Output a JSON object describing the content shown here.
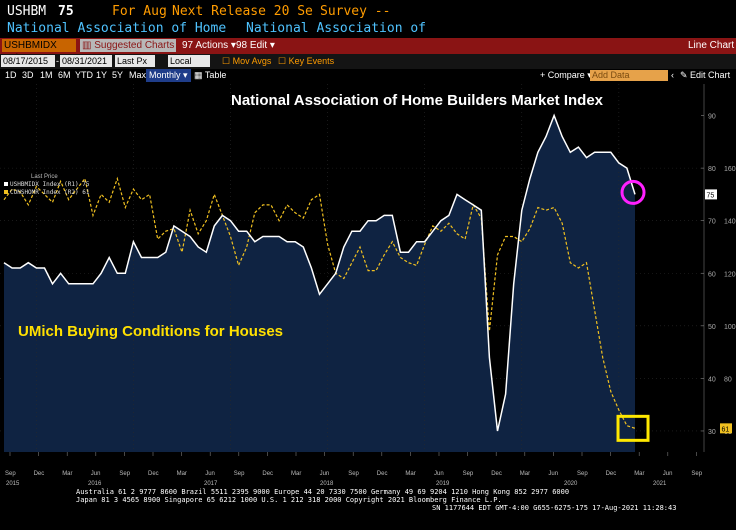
{
  "header": {
    "ticker": "USHBM",
    "value": "75",
    "for_aug": "For Aug",
    "next_release": "Next Release 20 Se",
    "survey": "Survey --",
    "line2_a": "National Association of Home",
    "line2_b": "National Association of"
  },
  "toolbar": {
    "ticker_field": "USHBMIDX Index",
    "suggested": "Suggested Charts",
    "actions": "Actions",
    "edit": "Edit",
    "line_chart": "Line Chart"
  },
  "range_bar": {
    "start_date": "08/17/2015",
    "end_date": "08/31/2021",
    "last_px": "Last Px",
    "local_ccy": "Local CCY",
    "mov_avgs": "Mov Avgs",
    "key_events": "Key Events"
  },
  "period_bar": {
    "periods": [
      "1D",
      "3D",
      "1M",
      "6M",
      "YTD",
      "1Y",
      "5Y",
      "Max"
    ],
    "frequency": "Monthly",
    "table": "Table",
    "compare": "Compare",
    "add_data": "Add Data",
    "edit_chart": "Edit Chart"
  },
  "chart_data": {
    "type": "line",
    "title": "National Association of Home Builders Market Index",
    "annotation": "UMich Buying Conditions for Houses",
    "legend_title": "Last Price",
    "legend": [
      {
        "label": "USHBMIDX Index (R1) 75",
        "color": "#ffffff",
        "style": "solid"
      },
      {
        "label": "CONSHOMR Index (R2) 61",
        "color": "#f0c020",
        "style": "dashed"
      }
    ],
    "x_labels": [
      "Sep",
      "Dec",
      "Mar",
      "Jun",
      "Sep",
      "Dec",
      "Mar",
      "Jun",
      "Sep",
      "Dec",
      "Mar",
      "Jun",
      "Sep",
      "Dec",
      "Mar",
      "Jun",
      "Sep",
      "Dec",
      "Mar",
      "Jun",
      "Sep",
      "Dec",
      "Mar",
      "Jun",
      "Sep"
    ],
    "year_labels": [
      "2015",
      "2016",
      "2017",
      "2018",
      "2019",
      "2020",
      "2021"
    ],
    "y_ticks": [
      30,
      40,
      50,
      60,
      70,
      80,
      90
    ],
    "y2_ticks": [
      60,
      80,
      100,
      120,
      140,
      160
    ],
    "y_range": [
      26,
      96
    ],
    "y2_range": [
      52,
      192
    ],
    "series": [
      {
        "name": "USHBMIDX Index",
        "axis": "left",
        "last_label": "75",
        "values": [
          62,
          61,
          61,
          62,
          61,
          61,
          58,
          60,
          58,
          58,
          58,
          58,
          60,
          63,
          60,
          60,
          66,
          63,
          63,
          63,
          64,
          69,
          68,
          67,
          65,
          64,
          69,
          71,
          70,
          68,
          68,
          66,
          67,
          67,
          67,
          66,
          66,
          65,
          61,
          56,
          58,
          60,
          65,
          68,
          68,
          70,
          70,
          71,
          71,
          64,
          64,
          66,
          66,
          68,
          70,
          71,
          75,
          74,
          73,
          72,
          44,
          30,
          37,
          58,
          72,
          78,
          83,
          86,
          90,
          86,
          83,
          84,
          82,
          83,
          83,
          83,
          81,
          80,
          75
        ]
      },
      {
        "name": "CONSHOMR Index",
        "axis": "right",
        "last_label": "61",
        "values": [
          148,
          152,
          151,
          146,
          153,
          150,
          147,
          155,
          148,
          152,
          156,
          142,
          150,
          147,
          156,
          145,
          152,
          148,
          150,
          133,
          136,
          137,
          128,
          144,
          135,
          140,
          150,
          142,
          134,
          123,
          130,
          143,
          146,
          146,
          140,
          146,
          143,
          141,
          148,
          150,
          131,
          120,
          118,
          124,
          130,
          121,
          121,
          127,
          132,
          126,
          124,
          123,
          131,
          138,
          136,
          139,
          135,
          133,
          146,
          141,
          98,
          127,
          134,
          134,
          132,
          137,
          145,
          144,
          145,
          139,
          124,
          122,
          124,
          106,
          88,
          75,
          68,
          62,
          61
        ]
      }
    ]
  },
  "footer": {
    "line1": "Australia 61 2 9777 8600  Brazil 5511 2395 9000  Europe 44 20 7330 7500  Germany 49 69 9204 1210  Hong Kong 852 2977 6000",
    "line2": "Japan 81 3 4565 8900          Singapore 65 6212 1000          U.S. 1 212 318 2000          Copyright 2021 Bloomberg Finance L.P.",
    "line3": "SN 1177644 EDT  GMT-4:00 G655-6275-175 17-Aug-2021 11:28:43"
  }
}
